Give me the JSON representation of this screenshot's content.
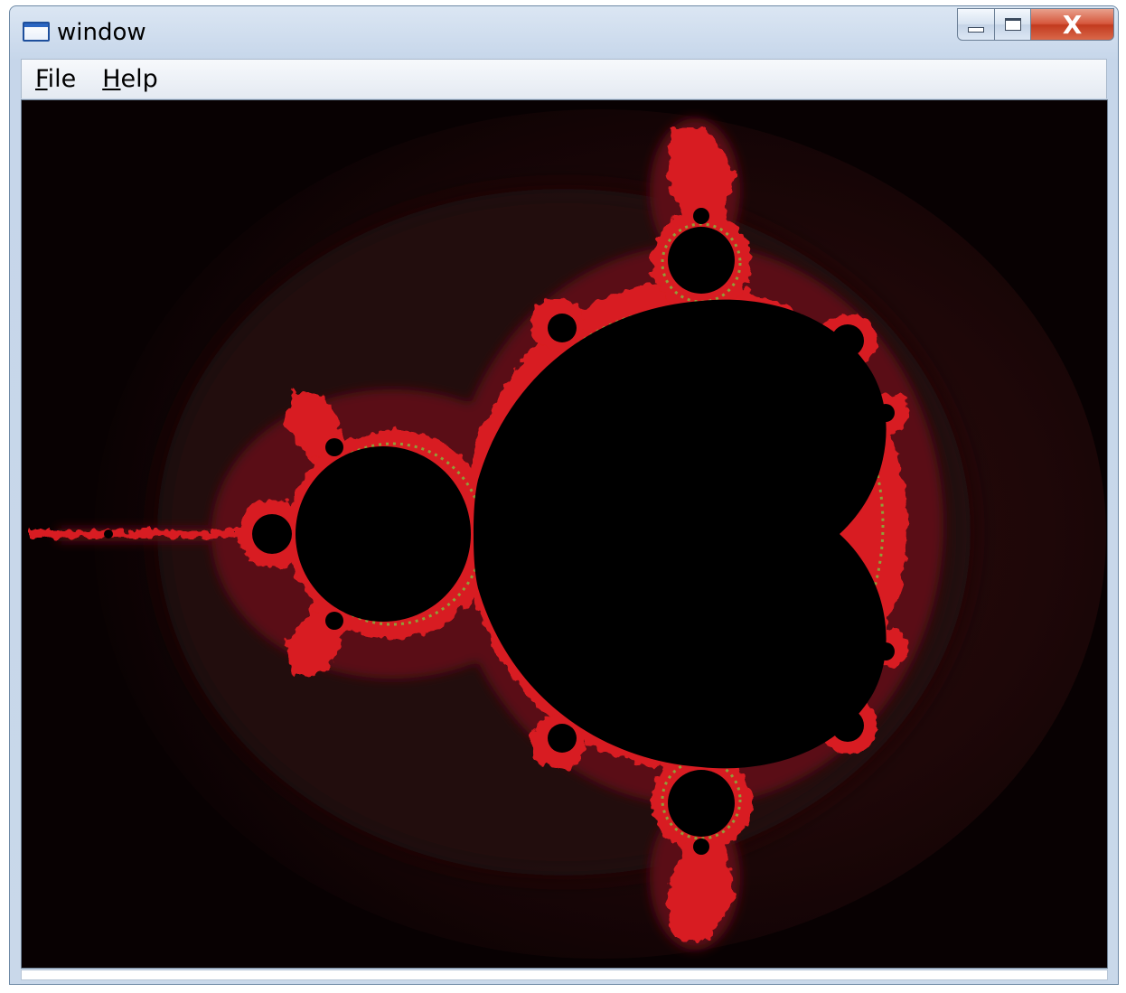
{
  "window": {
    "title": "window",
    "icon": "window-app-icon",
    "buttons": {
      "minimize_icon": "minimize-icon",
      "maximize_icon": "maximize-icon",
      "close_label": "X"
    }
  },
  "menubar": {
    "items": [
      {
        "mnemonic": "F",
        "rest": "ile"
      },
      {
        "mnemonic": "H",
        "rest": "elp"
      }
    ]
  },
  "canvas": {
    "content": "mandelbrot-fractal",
    "colors": {
      "background": "#0a0203",
      "set_interior": "#000000",
      "boundary_red": "#e02020",
      "boundary_green": "#7fc040"
    }
  }
}
